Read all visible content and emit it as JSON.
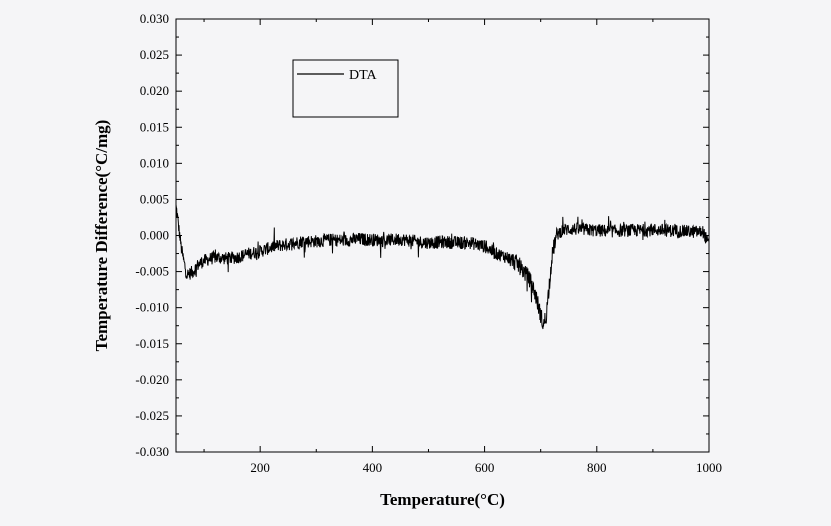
{
  "chart_data": {
    "type": "line",
    "title": "",
    "xlabel": "Temperature(°C)",
    "ylabel": "Temperature Difference(°C/mg)",
    "xlim": [
      50,
      1000
    ],
    "ylim": [
      -0.03,
      0.03
    ],
    "x_ticks": [
      200,
      400,
      600,
      800,
      1000
    ],
    "x_tick_labels": [
      "200",
      "400",
      "600",
      "800",
      "1000"
    ],
    "y_ticks": [
      -0.03,
      -0.025,
      -0.02,
      -0.015,
      -0.01,
      -0.005,
      0.0,
      0.005,
      0.01,
      0.015,
      0.02,
      0.025,
      0.03
    ],
    "y_tick_labels": [
      "-0.030",
      "-0.025",
      "-0.020",
      "-0.015",
      "-0.010",
      "-0.005",
      "0.000",
      "0.005",
      "0.010",
      "0.015",
      "0.020",
      "0.025",
      "0.030"
    ],
    "grid": false,
    "legend": {
      "position": "top-left",
      "entries": [
        "DTA"
      ]
    },
    "series": [
      {
        "name": "DTA",
        "color": "#000000",
        "x": [
          50,
          52,
          55,
          60,
          65,
          70,
          80,
          90,
          100,
          120,
          140,
          160,
          180,
          200,
          225,
          250,
          275,
          300,
          325,
          350,
          375,
          400,
          425,
          450,
          475,
          500,
          525,
          550,
          575,
          600,
          620,
          640,
          660,
          670,
          680,
          690,
          695,
          700,
          705,
          710,
          715,
          720,
          725,
          730,
          740,
          760,
          780,
          800,
          825,
          850,
          875,
          900,
          925,
          950,
          975,
          990,
          1000
        ],
        "y": [
          0.004,
          0.003,
          0.001,
          -0.002,
          -0.004,
          -0.0055,
          -0.005,
          -0.004,
          -0.0035,
          -0.003,
          -0.0032,
          -0.003,
          -0.0025,
          -0.0022,
          -0.0015,
          -0.0012,
          -0.0008,
          -0.0008,
          -0.0006,
          -0.0007,
          -0.0005,
          -0.0006,
          -0.0007,
          -0.0005,
          -0.0008,
          -0.001,
          -0.0009,
          -0.001,
          -0.001,
          -0.0015,
          -0.0025,
          -0.003,
          -0.004,
          -0.005,
          -0.006,
          -0.008,
          -0.0095,
          -0.011,
          -0.0125,
          -0.011,
          -0.007,
          -0.003,
          -0.001,
          0.0002,
          0.0008,
          0.0009,
          0.0008,
          0.0007,
          0.0006,
          0.0007,
          0.0007,
          0.0008,
          0.0007,
          0.0006,
          0.0005,
          0.0005,
          -0.0015
        ]
      }
    ]
  }
}
